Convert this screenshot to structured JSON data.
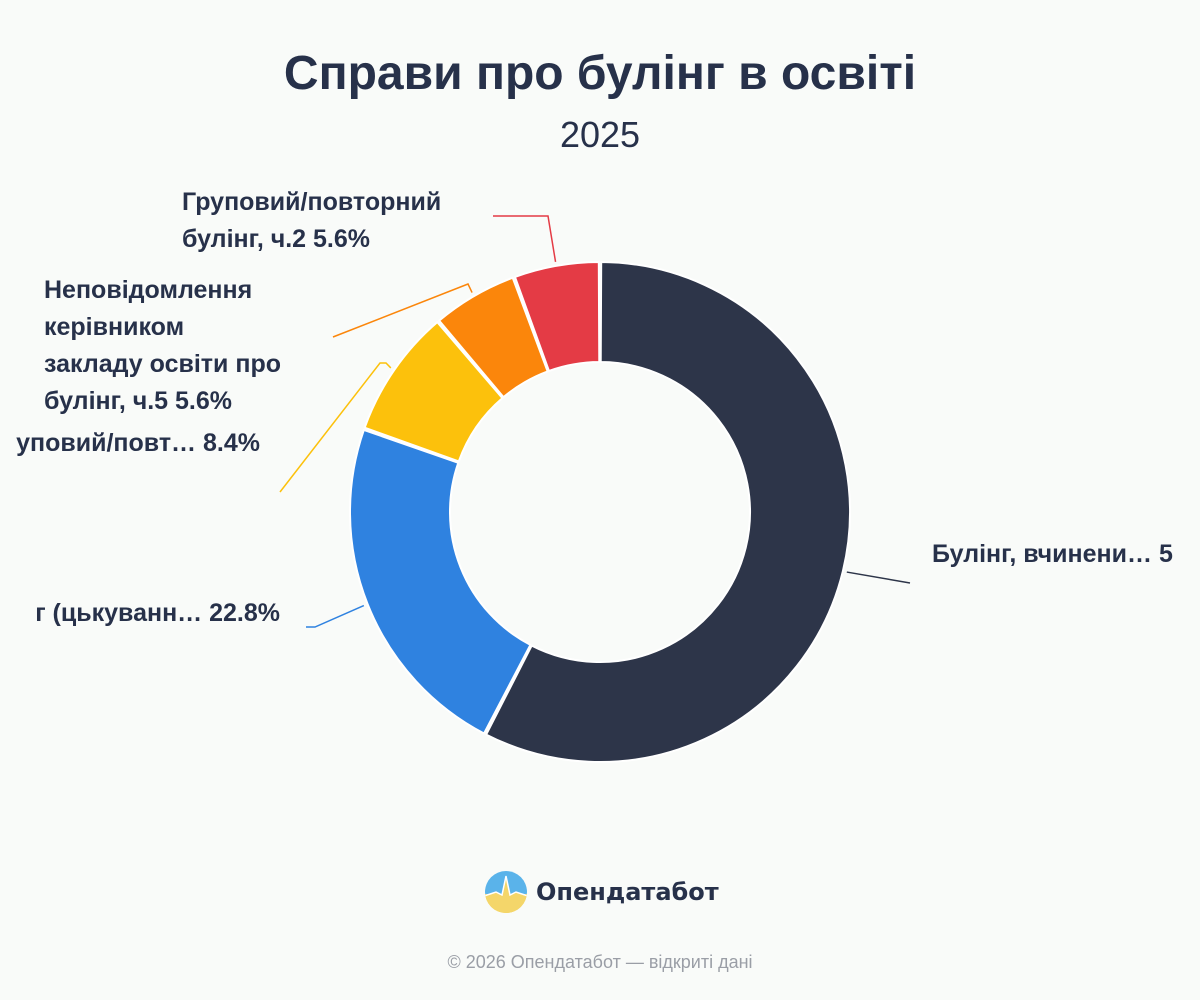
{
  "chart_data": {
    "type": "pie",
    "title": "Справи про булінг в освіті",
    "subtitle": "2025",
    "slices": [
      {
        "label_lines": [
          "Булінг, вчинени… 5"
        ],
        "value": 57.6,
        "color": "#2d3549"
      },
      {
        "label_lines": [
          "г (цькуванн… 22.8%"
        ],
        "value": 22.8,
        "color": "#2f82e0"
      },
      {
        "label_lines": [
          "уповий/повт… 8.4%"
        ],
        "value": 8.4,
        "color": "#fcc10c"
      },
      {
        "label_lines": [
          "Неповідомлення",
          "керівником",
          "закладу освіти про",
          "булінг, ч.5 5.6%"
        ],
        "value": 5.6,
        "color": "#fb860b"
      },
      {
        "label_lines": [
          "Груповий/повторний",
          "булінг, ч.2 5.6%"
        ],
        "value": 5.6,
        "color": "#e43b45"
      }
    ]
  },
  "brand": {
    "name": "Опендатабот"
  },
  "footer": {
    "text": "© 2026 Опендатабот — відкриті дані"
  }
}
